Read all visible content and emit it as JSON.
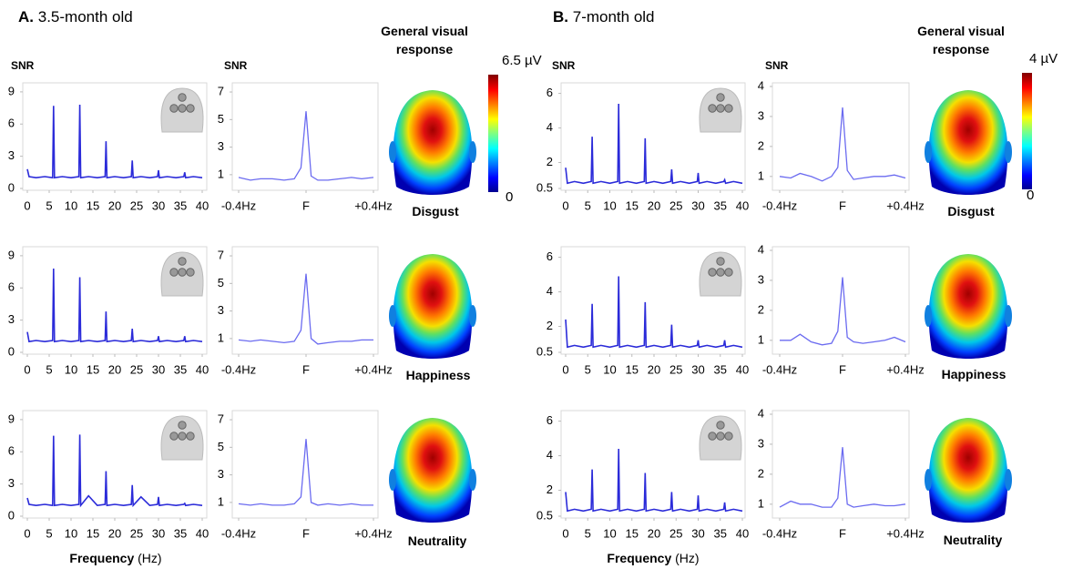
{
  "figure": {
    "panels": [
      {
        "letter": "A.",
        "title": "3.5-month old",
        "header": "General visual response",
        "colorbar_max": "6.5 µV",
        "colorbar_min": "0",
        "x_label": "Frequency",
        "x_unit": "(Hz)",
        "rows": [
          "Disgust",
          "Happiness",
          "Neutrality"
        ]
      },
      {
        "letter": "B.",
        "title": "7-month old",
        "header": "General visual response",
        "colorbar_max": "4 µV",
        "colorbar_min": "0",
        "x_label": "Frequency",
        "x_unit": "(Hz)",
        "rows": [
          "Disgust",
          "Happiness",
          "Neutrality"
        ]
      }
    ]
  },
  "chart_data": [
    {
      "type": "line",
      "y_label": "SNR",
      "color": "#2b2bd9",
      "xlim": [
        0,
        40
      ],
      "xticks": [
        0,
        5,
        10,
        15,
        20,
        25,
        30,
        35,
        40
      ],
      "ylim": [
        0,
        9.5
      ],
      "yticks": [
        0,
        3,
        6,
        9
      ],
      "x": [
        0,
        0.4,
        2,
        4,
        5.8,
        6,
        6.2,
        8,
        10,
        11.8,
        12,
        12.2,
        14,
        16,
        17.8,
        18,
        18.2,
        20,
        22,
        23.8,
        24,
        24.2,
        26,
        28,
        29.8,
        30,
        30.2,
        32,
        34,
        35.8,
        36,
        36.2,
        38,
        40
      ],
      "values": [
        1.8,
        1.1,
        1.0,
        1.1,
        1.0,
        7.7,
        1.0,
        1.1,
        1.0,
        1.1,
        7.8,
        1.0,
        1.1,
        1.0,
        1.1,
        4.4,
        1.0,
        1.1,
        1.0,
        1.1,
        2.6,
        1.0,
        1.1,
        1.0,
        1.1,
        1.7,
        1.0,
        1.1,
        1.0,
        1.1,
        1.5,
        1.0,
        1.1,
        1.0
      ]
    },
    {
      "type": "line",
      "y_label": "SNR",
      "color": "#6b6bf0",
      "xlim": [
        -0.4,
        0.4
      ],
      "xticks": [
        {
          "value": -0.4,
          "label": "-0.4Hz"
        },
        {
          "value": 0,
          "label": "F"
        },
        {
          "value": 0.4,
          "label": "+0.4Hz"
        }
      ],
      "ylim": [
        0,
        7.4
      ],
      "yticks": [
        1,
        3,
        5,
        7
      ],
      "x": [
        -0.4,
        -0.33,
        -0.27,
        -0.2,
        -0.13,
        -0.07,
        -0.03,
        0,
        0.03,
        0.07,
        0.13,
        0.2,
        0.27,
        0.33,
        0.4
      ],
      "values": [
        0.8,
        0.6,
        0.7,
        0.7,
        0.6,
        0.7,
        1.5,
        5.6,
        0.9,
        0.6,
        0.6,
        0.7,
        0.8,
        0.7,
        0.8
      ]
    },
    {
      "type": "line",
      "color": "#2b2bd9",
      "xlim": [
        0,
        40
      ],
      "xticks": [
        0,
        5,
        10,
        15,
        20,
        25,
        30,
        35,
        40
      ],
      "ylim": [
        0,
        9.5
      ],
      "yticks": [
        0,
        3,
        6,
        9
      ],
      "x": [
        0,
        0.4,
        2,
        4,
        5.8,
        6,
        6.2,
        8,
        10,
        11.8,
        12,
        12.2,
        14,
        16,
        17.8,
        18,
        18.2,
        20,
        22,
        23.8,
        24,
        24.2,
        26,
        28,
        29.8,
        30,
        30.2,
        32,
        34,
        35.8,
        36,
        36.2,
        38,
        40
      ],
      "values": [
        1.9,
        1.0,
        1.1,
        1.0,
        1.1,
        7.8,
        1.0,
        1.1,
        1.0,
        1.1,
        7.0,
        1.0,
        1.1,
        1.0,
        1.1,
        3.8,
        1.0,
        1.1,
        1.0,
        1.1,
        2.2,
        1.0,
        1.1,
        1.0,
        1.1,
        1.5,
        1.0,
        1.1,
        1.0,
        1.1,
        1.5,
        1.0,
        1.1,
        1.0
      ]
    },
    {
      "type": "line",
      "color": "#6b6bf0",
      "xlim": [
        -0.4,
        0.4
      ],
      "xticks": [
        {
          "value": -0.4,
          "label": "-0.4Hz"
        },
        {
          "value": 0,
          "label": "F"
        },
        {
          "value": 0.4,
          "label": "+0.4Hz"
        }
      ],
      "ylim": [
        0,
        7.4
      ],
      "yticks": [
        1,
        3,
        5,
        7
      ],
      "x": [
        -0.4,
        -0.33,
        -0.27,
        -0.2,
        -0.13,
        -0.07,
        -0.03,
        0,
        0.03,
        0.07,
        0.13,
        0.2,
        0.27,
        0.33,
        0.4
      ],
      "values": [
        0.9,
        0.8,
        0.9,
        0.8,
        0.7,
        0.8,
        1.6,
        5.7,
        1.0,
        0.6,
        0.7,
        0.8,
        0.8,
        0.9,
        0.9
      ]
    },
    {
      "type": "line",
      "color": "#2b2bd9",
      "xlim": [
        0,
        40
      ],
      "xticks": [
        0,
        5,
        10,
        15,
        20,
        25,
        30,
        35,
        40
      ],
      "ylim": [
        0,
        9.5
      ],
      "yticks": [
        0,
        3,
        6,
        9
      ],
      "x": [
        0,
        0.4,
        2,
        4,
        5.8,
        6,
        6.2,
        8,
        10,
        11.8,
        12,
        12.2,
        14,
        16,
        17.8,
        18,
        18.2,
        20,
        22,
        23.8,
        24,
        24.2,
        26,
        28,
        29.8,
        30,
        30.2,
        32,
        34,
        35.8,
        36,
        36.2,
        38,
        40
      ],
      "values": [
        1.7,
        1.1,
        1.0,
        1.1,
        1.0,
        7.5,
        1.0,
        1.1,
        1.0,
        1.1,
        7.6,
        1.0,
        1.9,
        1.0,
        1.1,
        4.2,
        1.0,
        1.1,
        1.0,
        1.1,
        2.9,
        1.0,
        1.8,
        1.0,
        1.1,
        1.8,
        1.0,
        1.1,
        1.0,
        1.1,
        1.2,
        1.0,
        1.1,
        1.0
      ]
    },
    {
      "type": "line",
      "color": "#6b6bf0",
      "xlim": [
        -0.4,
        0.4
      ],
      "xticks": [
        {
          "value": -0.4,
          "label": "-0.4Hz"
        },
        {
          "value": 0,
          "label": "F"
        },
        {
          "value": 0.4,
          "label": "+0.4Hz"
        }
      ],
      "ylim": [
        0,
        7.4
      ],
      "yticks": [
        1,
        3,
        5,
        7
      ],
      "x": [
        -0.4,
        -0.33,
        -0.27,
        -0.2,
        -0.13,
        -0.07,
        -0.03,
        0,
        0.03,
        0.07,
        0.13,
        0.2,
        0.27,
        0.33,
        0.4
      ],
      "values": [
        0.9,
        0.8,
        0.9,
        0.8,
        0.8,
        0.9,
        1.4,
        5.6,
        1.0,
        0.8,
        0.9,
        0.8,
        0.9,
        0.8,
        0.8
      ]
    },
    {
      "type": "line",
      "y_label": "SNR",
      "color": "#2b2bd9",
      "xlim": [
        0,
        40
      ],
      "xticks": [
        0,
        5,
        10,
        15,
        20,
        25,
        30,
        35,
        40
      ],
      "ylim": [
        0.5,
        6.4
      ],
      "yticks": [
        0.5,
        2,
        4,
        6
      ],
      "x": [
        0,
        0.4,
        2,
        4,
        5.8,
        6,
        6.2,
        8,
        10,
        11.8,
        12,
        12.2,
        14,
        16,
        17.8,
        18,
        18.2,
        20,
        22,
        23.8,
        24,
        24.2,
        26,
        28,
        29.8,
        30,
        30.2,
        32,
        34,
        35.8,
        36,
        36.2,
        38,
        40
      ],
      "values": [
        1.7,
        0.8,
        0.9,
        0.8,
        0.9,
        3.5,
        0.8,
        0.9,
        0.8,
        0.9,
        5.4,
        0.8,
        0.9,
        0.8,
        0.9,
        3.4,
        0.8,
        0.9,
        0.8,
        0.9,
        1.6,
        0.8,
        0.9,
        0.8,
        0.9,
        1.4,
        0.8,
        0.9,
        0.8,
        0.9,
        1.0,
        0.8,
        0.9,
        0.8
      ]
    },
    {
      "type": "line",
      "y_label": "SNR",
      "color": "#6b6bf0",
      "xlim": [
        -0.4,
        0.4
      ],
      "xticks": [
        {
          "value": -0.4,
          "label": "-0.4Hz"
        },
        {
          "value": 0,
          "label": "F"
        },
        {
          "value": 0.4,
          "label": "+0.4Hz"
        }
      ],
      "ylim": [
        0.6,
        4
      ],
      "yticks": [
        1,
        2,
        3,
        4
      ],
      "x": [
        -0.4,
        -0.33,
        -0.27,
        -0.2,
        -0.13,
        -0.07,
        -0.03,
        0,
        0.03,
        0.07,
        0.13,
        0.2,
        0.27,
        0.33,
        0.4
      ],
      "values": [
        1.0,
        0.95,
        1.1,
        1.0,
        0.85,
        1.0,
        1.3,
        3.3,
        1.2,
        0.9,
        0.95,
        1.0,
        1.0,
        1.05,
        0.95
      ]
    },
    {
      "type": "line",
      "color": "#2b2bd9",
      "xlim": [
        0,
        40
      ],
      "xticks": [
        0,
        5,
        10,
        15,
        20,
        25,
        30,
        35,
        40
      ],
      "ylim": [
        0.5,
        6.4
      ],
      "yticks": [
        0.5,
        2,
        4,
        6
      ],
      "x": [
        0,
        0.4,
        2,
        4,
        5.8,
        6,
        6.2,
        8,
        10,
        11.8,
        12,
        12.2,
        14,
        16,
        17.8,
        18,
        18.2,
        20,
        22,
        23.8,
        24,
        24.2,
        26,
        28,
        29.8,
        30,
        30.2,
        32,
        34,
        35.8,
        36,
        36.2,
        38,
        40
      ],
      "values": [
        2.4,
        0.8,
        0.9,
        0.8,
        0.9,
        3.3,
        0.8,
        0.9,
        0.8,
        0.9,
        4.9,
        0.8,
        0.9,
        0.8,
        0.9,
        3.4,
        0.8,
        0.9,
        0.8,
        0.9,
        2.1,
        0.8,
        0.9,
        0.8,
        0.9,
        1.2,
        0.8,
        0.9,
        0.8,
        0.9,
        1.2,
        0.8,
        0.9,
        0.8
      ]
    },
    {
      "type": "line",
      "color": "#6b6bf0",
      "xlim": [
        -0.4,
        0.4
      ],
      "xticks": [
        {
          "value": -0.4,
          "label": "-0.4Hz"
        },
        {
          "value": 0,
          "label": "F"
        },
        {
          "value": 0.4,
          "label": "+0.4Hz"
        }
      ],
      "ylim": [
        0.6,
        4
      ],
      "yticks": [
        1,
        2,
        3,
        4
      ],
      "x": [
        -0.4,
        -0.33,
        -0.27,
        -0.2,
        -0.13,
        -0.07,
        -0.03,
        0,
        0.03,
        0.07,
        0.13,
        0.2,
        0.27,
        0.33,
        0.4
      ],
      "values": [
        1.0,
        1.0,
        1.2,
        0.95,
        0.85,
        0.9,
        1.3,
        3.1,
        1.1,
        0.95,
        0.9,
        0.95,
        1.0,
        1.1,
        0.95
      ]
    },
    {
      "type": "line",
      "color": "#2b2bd9",
      "xlim": [
        0,
        40
      ],
      "xticks": [
        0,
        5,
        10,
        15,
        20,
        25,
        30,
        35,
        40
      ],
      "ylim": [
        0.5,
        6.4
      ],
      "yticks": [
        0.5,
        2,
        4,
        6
      ],
      "x": [
        0,
        0.4,
        2,
        4,
        5.8,
        6,
        6.2,
        8,
        10,
        11.8,
        12,
        12.2,
        14,
        16,
        17.8,
        18,
        18.2,
        20,
        22,
        23.8,
        24,
        24.2,
        26,
        28,
        29.8,
        30,
        30.2,
        32,
        34,
        35.8,
        36,
        36.2,
        38,
        40
      ],
      "values": [
        1.9,
        0.8,
        0.9,
        0.8,
        0.9,
        3.2,
        0.8,
        0.9,
        0.8,
        0.9,
        4.4,
        0.8,
        0.9,
        0.8,
        0.9,
        3.0,
        0.8,
        0.9,
        0.8,
        0.9,
        1.9,
        0.8,
        0.9,
        0.8,
        0.9,
        1.7,
        0.8,
        0.9,
        0.8,
        0.9,
        1.3,
        0.8,
        0.9,
        0.8
      ]
    },
    {
      "type": "line",
      "color": "#6b6bf0",
      "xlim": [
        -0.4,
        0.4
      ],
      "xticks": [
        {
          "value": -0.4,
          "label": "-0.4Hz"
        },
        {
          "value": 0,
          "label": "F"
        },
        {
          "value": 0.4,
          "label": "+0.4Hz"
        }
      ],
      "ylim": [
        0.6,
        4
      ],
      "yticks": [
        1,
        2,
        3,
        4
      ],
      "x": [
        -0.4,
        -0.33,
        -0.27,
        -0.2,
        -0.13,
        -0.07,
        -0.03,
        0,
        0.03,
        0.07,
        0.13,
        0.2,
        0.27,
        0.33,
        0.4
      ],
      "values": [
        0.9,
        1.1,
        1.0,
        1.0,
        0.9,
        0.9,
        1.2,
        2.9,
        1.0,
        0.9,
        0.95,
        1.0,
        0.95,
        0.95,
        1.0
      ]
    }
  ]
}
